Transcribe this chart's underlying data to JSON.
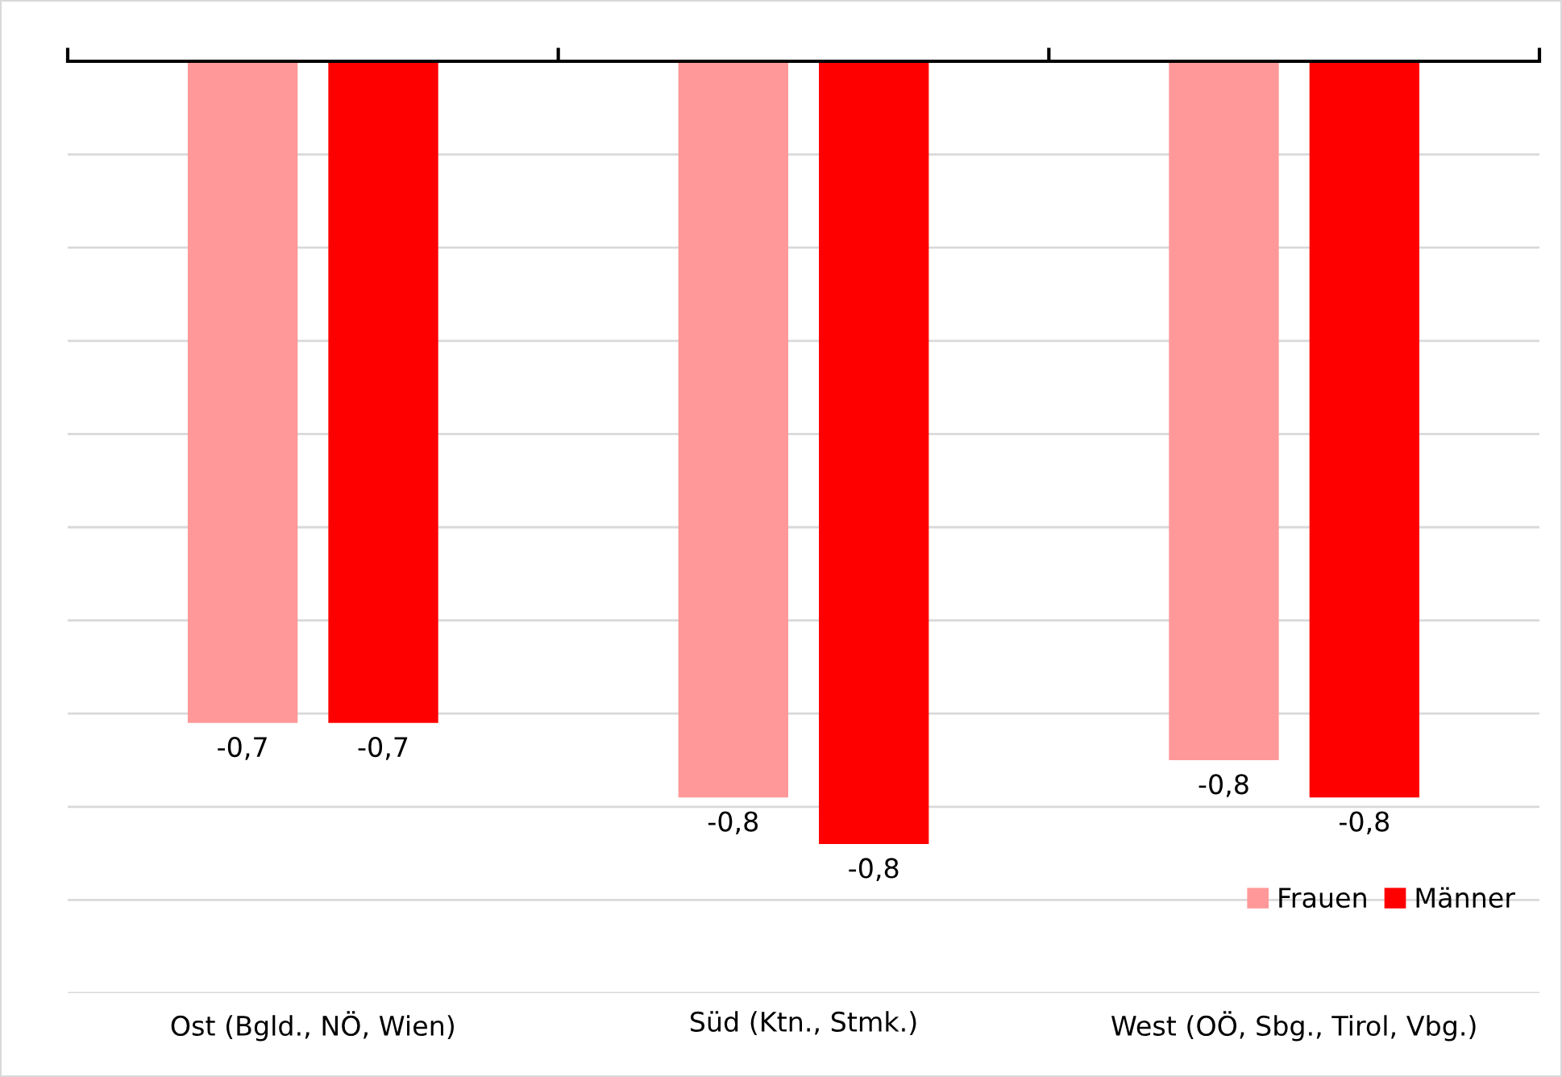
{
  "chart_data": {
    "type": "bar",
    "categories": [
      "Ost (Bgld., NÖ, Wien)",
      "Süd (Ktn., Stmk.)",
      "West (OÖ, Sbg., Tirol, Vbg.)"
    ],
    "series": [
      {
        "name": "Frauen",
        "color": "#ff9999",
        "values": [
          -0.71,
          -0.79,
          -0.75
        ],
        "value_labels": [
          "-0,7",
          "-0,8",
          "-0,8"
        ]
      },
      {
        "name": "Männer",
        "color": "#ff0000",
        "values": [
          -0.71,
          -0.84,
          -0.79
        ],
        "value_labels": [
          "-0,7",
          "-0,8",
          "-0,8"
        ]
      }
    ],
    "ylim": [
      -1.0,
      0
    ],
    "yticks": [
      {
        "value": 0,
        "label": null
      },
      {
        "value": -0.1,
        "label": null
      },
      {
        "value": -0.2,
        "label": null
      },
      {
        "value": -0.3,
        "label": null
      },
      {
        "value": -0.4,
        "label": null
      },
      {
        "value": -0.5,
        "label": null
      },
      {
        "value": -0.6,
        "label": null
      },
      {
        "value": -0.7,
        "label": null
      },
      {
        "value": -0.8,
        "label": null
      },
      {
        "value": -0.9,
        "label": null
      },
      {
        "value": -1.0,
        "label": null
      }
    ],
    "tick_labels": "x",
    "grid": "y",
    "legend": "bottom right"
  }
}
